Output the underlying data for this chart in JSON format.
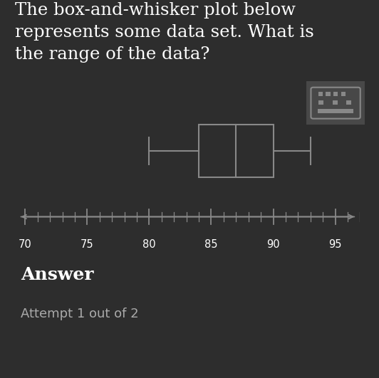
{
  "background_color": "#2d2d2d",
  "text_color": "#ffffff",
  "attempt_text_color": "#aaaaaa",
  "title_lines": [
    "The box-and-whisker plot below",
    "represents some data set. What is",
    "the range of the data?"
  ],
  "title_fontsize": 17.5,
  "whisker_min": 80,
  "q1": 84,
  "median": 87,
  "q3": 90,
  "whisker_max": 93,
  "axis_min": 70,
  "axis_max": 97,
  "axis_ticks": [
    70,
    75,
    80,
    85,
    90,
    95
  ],
  "line_color": "#888888",
  "box_color": "#2d2d2d",
  "box_edge_color": "#888888",
  "answer_text": "Answer",
  "attempt_text": "Attempt 1 out of 2",
  "answer_fontsize": 18,
  "attempt_fontsize": 13,
  "btn_color": "#484848",
  "btn_icon_color": "#888888"
}
